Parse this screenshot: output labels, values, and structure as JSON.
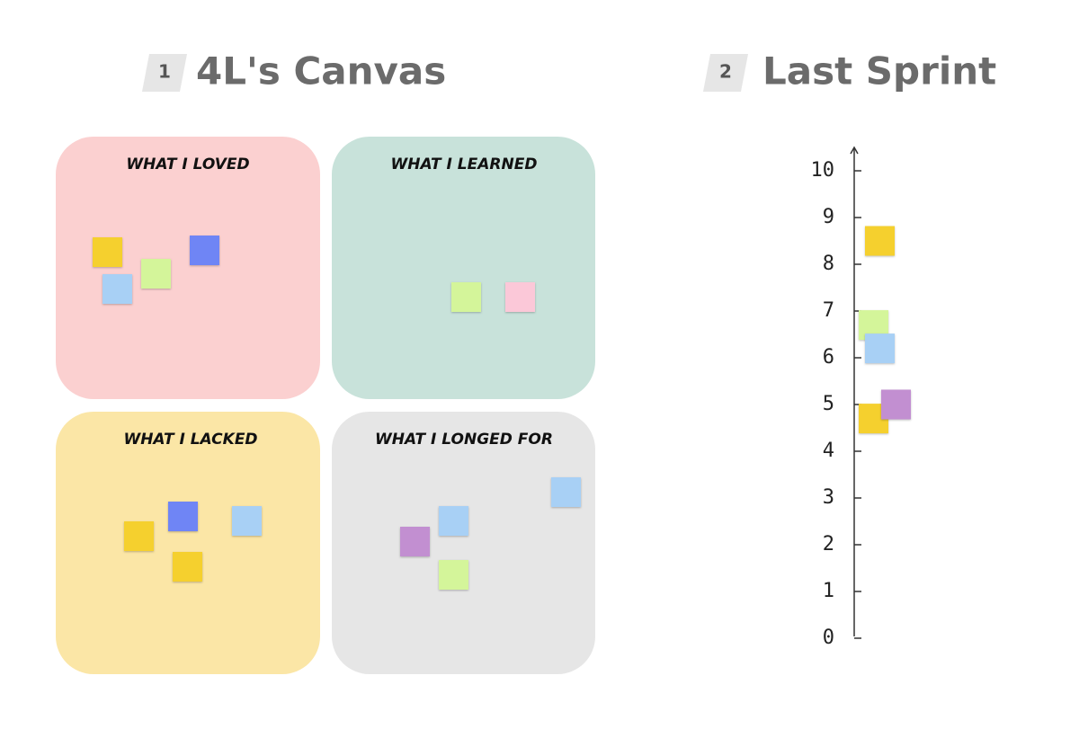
{
  "header": {
    "canvas_number": "1",
    "canvas_title": "4L's Canvas",
    "sprint_number": "2",
    "sprint_title": "Last Sprint"
  },
  "quadrants": [
    "WHAT I LOVED",
    "WHAT I LEARNED",
    "WHAT I LACKED",
    "WHAT I LONGED FOR"
  ],
  "scale": {
    "ylim": [
      0,
      10
    ],
    "ticks": [
      0,
      1,
      2,
      3,
      4,
      5,
      6,
      7,
      8,
      9,
      10
    ],
    "notes": [
      {
        "color": "#f5d02e",
        "value": 8.5
      },
      {
        "color": "#d4f59a",
        "value": 6.7
      },
      {
        "color": "#a8d0f5",
        "value": 6.2
      },
      {
        "color": "#f5d02e",
        "value": 4.7
      },
      {
        "color": "#c28fd1",
        "value": 5
      }
    ]
  }
}
